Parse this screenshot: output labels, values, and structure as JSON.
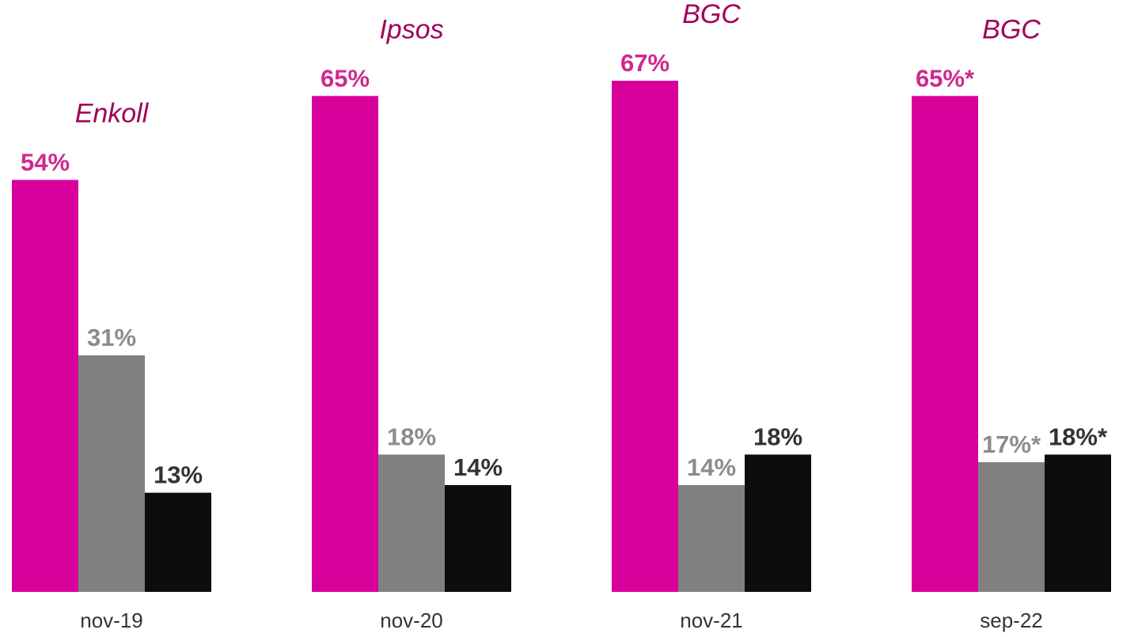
{
  "chart_data": {
    "type": "bar",
    "categories": [
      "nov-19",
      "nov-20",
      "nov-21",
      "sep-22"
    ],
    "sources": [
      "Enkoll",
      "Ipsos",
      "BGC",
      "BGC"
    ],
    "series": [
      {
        "values": [
          54,
          65,
          67,
          65
        ],
        "labels": [
          "54%",
          "65%",
          "67%",
          "65%*"
        ],
        "color": "#d8009a",
        "label_color": "#d0288e"
      },
      {
        "values": [
          31,
          18,
          14,
          17
        ],
        "labels": [
          "31%",
          "18%",
          "14%",
          "17%*"
        ],
        "color": "#808080",
        "label_color": "#8c8c8c"
      },
      {
        "values": [
          13,
          14,
          18,
          18
        ],
        "labels": [
          "13%",
          "14%",
          "18%",
          "18%*"
        ],
        "color": "#0d0d0d",
        "label_color": "#333333"
      }
    ],
    "ylim": [
      0,
      67
    ],
    "grid": false,
    "xlabel": "",
    "ylabel": "",
    "source_color": "#a0005a"
  }
}
